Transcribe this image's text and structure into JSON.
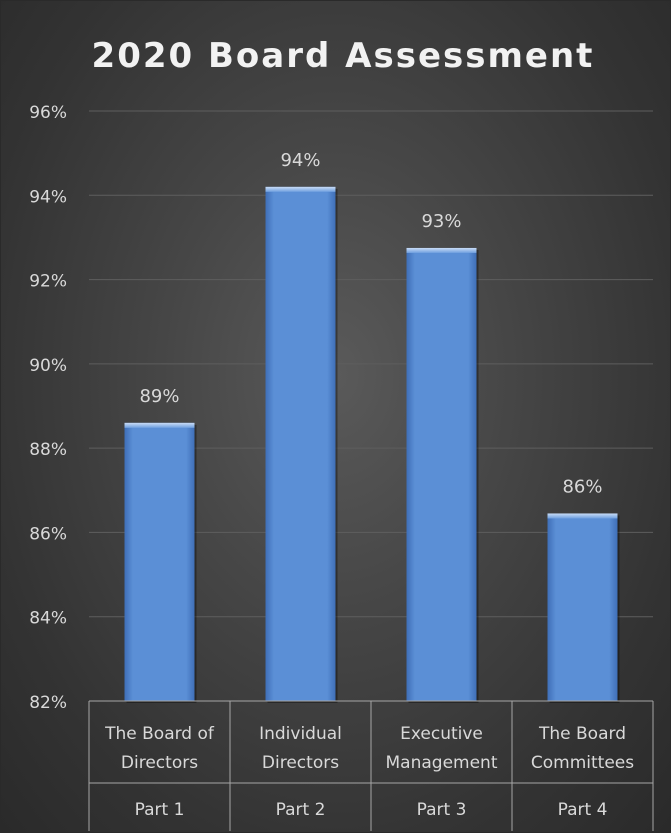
{
  "chart_data": {
    "type": "bar",
    "title": "2020 Board Assessment",
    "categories": [
      {
        "label_lines": [
          "The Board of",
          "Directors"
        ],
        "group": "Part 1"
      },
      {
        "label_lines": [
          "Individual",
          "Directors"
        ],
        "group": "Part 2"
      },
      {
        "label_lines": [
          "Executive",
          "Management"
        ],
        "group": "Part 3"
      },
      {
        "label_lines": [
          "The Board",
          "Committees"
        ],
        "group": "Part 4"
      }
    ],
    "values": [
      88.6,
      94.2,
      92.75,
      86.45
    ],
    "data_labels": [
      "89%",
      "94%",
      "93%",
      "86%"
    ],
    "ylim": [
      82,
      96
    ],
    "yticks": [
      82,
      84,
      86,
      88,
      90,
      92,
      94,
      96
    ],
    "ytick_labels": [
      "82%",
      "84%",
      "86%",
      "88%",
      "90%",
      "92%",
      "94%",
      "96%"
    ],
    "grid": true,
    "legend": "none",
    "colors": {
      "bar": "#5b8fd6",
      "bar_dark": "#3f6fb8",
      "bar_light": "#86b0ea",
      "text": "#d9d9d9",
      "title": "#f2f2f2",
      "grid": "#5e5e5e",
      "axis": "#a6a6a6"
    }
  }
}
